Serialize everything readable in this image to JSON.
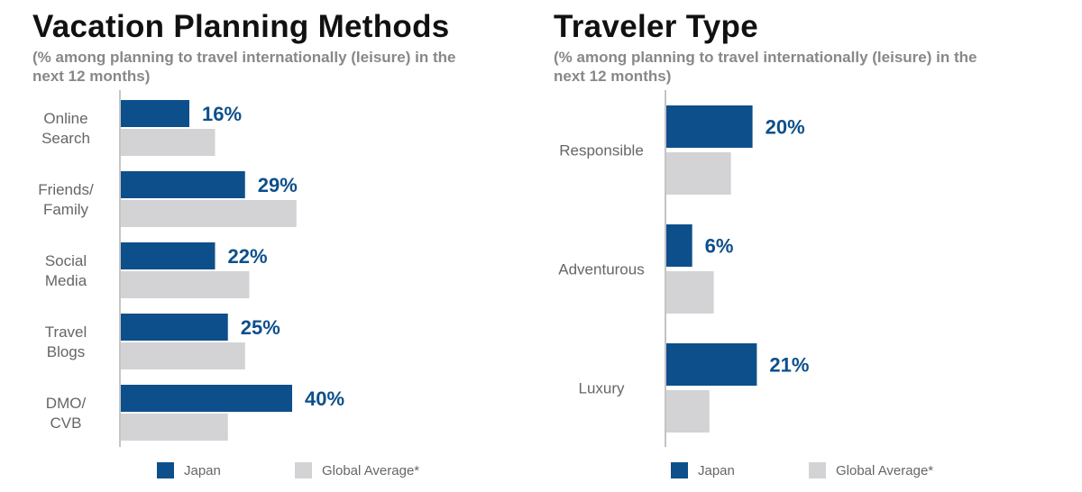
{
  "colors": {
    "primary": "#0d4f8b",
    "secondary": "#d3d3d5",
    "axis": "#888888"
  },
  "chart_data": [
    {
      "type": "bar",
      "orientation": "horizontal",
      "title": "Vacation Planning Methods",
      "subtitle": "(% among planning to travel internationally (leisure) in the next 12 months)",
      "categories": [
        "Online Search",
        "Friends/ Family",
        "Social Media",
        "Travel Blogs",
        "DMO/ CVB"
      ],
      "series": [
        {
          "name": "Japan",
          "values": [
            16,
            29,
            22,
            25,
            40
          ]
        },
        {
          "name": "Global Average*",
          "values": [
            22,
            41,
            30,
            29,
            25
          ]
        }
      ],
      "value_labels": [
        "16%",
        "29%",
        "22%",
        "25%",
        "40%"
      ],
      "xlim": [
        0,
        45
      ],
      "legend": "bottom",
      "grid": false
    },
    {
      "type": "bar",
      "orientation": "horizontal",
      "title": "Traveler Type",
      "subtitle": "(% among planning to travel internationally (leisure) in the next 12 months)",
      "categories": [
        "Responsible",
        "Adventurous",
        "Luxury"
      ],
      "series": [
        {
          "name": "Japan",
          "values": [
            20,
            6,
            21
          ]
        },
        {
          "name": "Global Average*",
          "values": [
            15,
            11,
            10
          ]
        }
      ],
      "value_labels": [
        "20%",
        "6%",
        "21%"
      ],
      "xlim": [
        0,
        45
      ],
      "legend": "bottom",
      "grid": false
    }
  ]
}
